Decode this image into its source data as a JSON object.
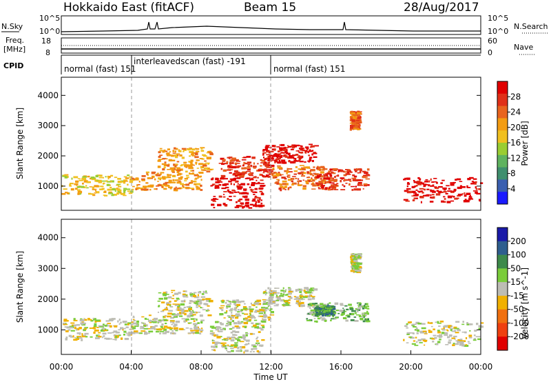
{
  "header": {
    "title_left": "Hokkaido East (fitACF)",
    "title_center": "Beam 15",
    "title_right": "28/Aug/2017"
  },
  "panels": {
    "nsky": {
      "label": "N.Sky",
      "right_label": "N.Search",
      "left_ticks": [
        "10^5",
        "10^0"
      ],
      "right_ticks": [
        "10^5",
        "10^0"
      ]
    },
    "freq": {
      "label_line1": "Freq.",
      "label_line2": "[MHz]",
      "right_label": "Nave",
      "left_ticks": [
        "18",
        "8"
      ],
      "right_ticks": [
        "60",
        "0"
      ]
    },
    "cpid": {
      "label": "CPID",
      "segments": [
        {
          "text": "normal (fast)  151",
          "start_hour": 0
        },
        {
          "text": "interleavedscan (fast) -191",
          "start_hour": 4
        },
        {
          "text": "normal (fast)  151",
          "start_hour": 12
        }
      ]
    }
  },
  "chart_data": [
    {
      "type": "heatmap",
      "name": "power",
      "ylabel": "Slant Range [km]",
      "yticks": [
        1000,
        2000,
        3000,
        4000
      ],
      "ylim": [
        200,
        4600
      ],
      "xlim": [
        0,
        24
      ],
      "colorbar": {
        "label": "Power [dB]",
        "ticks": [
          4,
          8,
          12,
          16,
          20,
          24,
          28
        ],
        "colors": [
          "#1a1aff",
          "#3a5fb0",
          "#3f8f6e",
          "#5fb35f",
          "#9acd32",
          "#f0c020",
          "#f39c12",
          "#e8641e",
          "#e03018",
          "#e00000"
        ]
      },
      "echo_bands": [
        {
          "t0": 0.0,
          "t1": 4.0,
          "r0": 700,
          "r1": 1400,
          "level": 5
        },
        {
          "t0": 4.0,
          "t1": 8.0,
          "r0": 900,
          "r1": 1500,
          "level": 6
        },
        {
          "t0": 5.5,
          "t1": 8.5,
          "r0": 1500,
          "r1": 2300,
          "level": 6
        },
        {
          "t0": 8.5,
          "t1": 11.5,
          "r0": 300,
          "r1": 1300,
          "level": 9
        },
        {
          "t0": 9.0,
          "t1": 12.0,
          "r0": 1300,
          "r1": 2000,
          "level": 8
        },
        {
          "t0": 11.5,
          "t1": 14.5,
          "r0": 1800,
          "r1": 2400,
          "level": 9
        },
        {
          "t0": 12.0,
          "t1": 15.0,
          "r0": 900,
          "r1": 1700,
          "level": 7
        },
        {
          "t0": 14.5,
          "t1": 17.5,
          "r0": 900,
          "r1": 1600,
          "level": 8
        },
        {
          "t0": 16.5,
          "t1": 17.0,
          "r0": 2900,
          "r1": 3500,
          "level": 7
        },
        {
          "t0": 19.5,
          "t1": 24.0,
          "r0": 500,
          "r1": 1300,
          "level": 9
        }
      ]
    },
    {
      "type": "heatmap",
      "name": "velocity",
      "ylabel": "Slant Range [km]",
      "xlabel": "Time UT",
      "yticks": [
        1000,
        2000,
        3000,
        4000
      ],
      "xticks": [
        "00:00",
        "04:00",
        "08:00",
        "12:00",
        "16:00",
        "20:00",
        "00:00"
      ],
      "ylim": [
        200,
        4600
      ],
      "xlim": [
        0,
        24
      ],
      "colorbar": {
        "label": "Velocity [m s^-1]",
        "ticks": [
          200,
          100,
          50,
          15,
          -15,
          -50,
          -100,
          -200
        ],
        "colors": [
          "#1a1aa8",
          "#2e5e8e",
          "#3d8a4a",
          "#7acc3a",
          "#bdbdb4",
          "#f0b000",
          "#f07010",
          "#ef4010",
          "#e00000"
        ]
      },
      "echo_bands": [
        {
          "t0": 0.0,
          "t1": 4.0,
          "r0": 700,
          "r1": 1400,
          "level": 4
        },
        {
          "t0": 4.0,
          "t1": 8.0,
          "r0": 900,
          "r1": 1500,
          "level": 4
        },
        {
          "t0": 5.5,
          "t1": 8.5,
          "r0": 1500,
          "r1": 2300,
          "level": 4
        },
        {
          "t0": 8.5,
          "t1": 11.5,
          "r0": 300,
          "r1": 1300,
          "level": 4
        },
        {
          "t0": 9.0,
          "t1": 12.0,
          "r0": 1300,
          "r1": 2000,
          "level": 4
        },
        {
          "t0": 11.5,
          "t1": 14.5,
          "r0": 1800,
          "r1": 2400,
          "level": 4
        },
        {
          "t0": 14.0,
          "t1": 17.5,
          "r0": 1300,
          "r1": 1900,
          "level": 3
        },
        {
          "t0": 14.5,
          "t1": 15.5,
          "r0": 1500,
          "r1": 1800,
          "level": 2
        },
        {
          "t0": 16.5,
          "t1": 17.0,
          "r0": 2900,
          "r1": 3500,
          "level": 4
        },
        {
          "t0": 19.5,
          "t1": 24.0,
          "r0": 500,
          "r1": 1300,
          "level": 4
        }
      ]
    }
  ]
}
